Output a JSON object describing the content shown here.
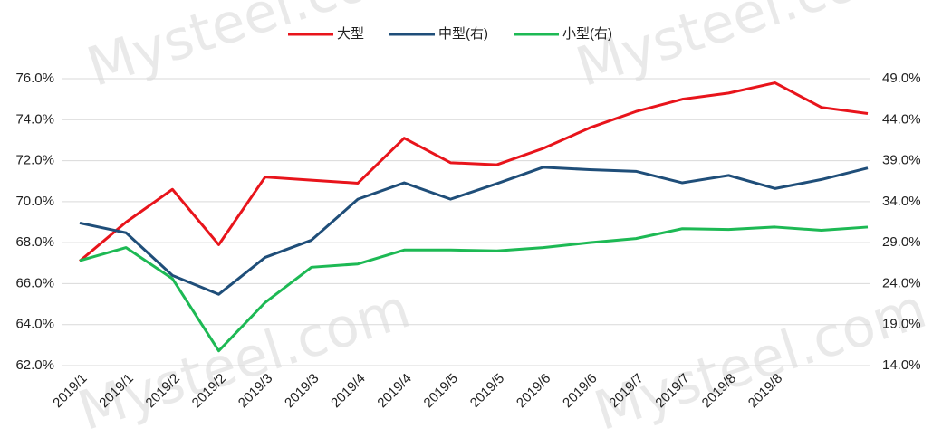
{
  "chart_data": {
    "type": "line",
    "watermark": "Mysteel.com",
    "categories": [
      "2019/1",
      "2019/1",
      "2019/2",
      "2019/2",
      "2019/3",
      "2019/3",
      "2019/4",
      "2019/4",
      "2019/5",
      "2019/5",
      "2019/6",
      "2019/6",
      "2019/7",
      "2019/7",
      "2019/8",
      "2019/8",
      null,
      null
    ],
    "series": [
      {
        "name": "大型",
        "color": "#e8141b",
        "values": [
          67.1,
          69.0,
          70.6,
          67.9,
          71.2,
          71.05,
          70.9,
          73.1,
          71.9,
          71.8,
          72.6,
          73.6,
          74.4,
          75.0,
          75.3,
          75.8,
          74.6,
          74.3
        ]
      },
      {
        "name": "中型(右)",
        "color": "#1f4e79",
        "axis": "y2",
        "values": [
          31.4,
          30.2,
          25.0,
          22.7,
          27.2,
          29.3,
          34.3,
          36.3,
          34.3,
          36.2,
          38.2,
          37.9,
          37.7,
          36.3,
          37.2,
          35.6,
          36.7,
          38.1
        ]
      },
      {
        "name": "小型(右)",
        "color": "#1db954",
        "axis": "y2",
        "values": [
          26.8,
          28.4,
          24.6,
          15.8,
          21.7,
          26.0,
          26.4,
          28.1,
          28.1,
          28.0,
          28.4,
          29.0,
          29.5,
          30.7,
          30.6,
          30.9,
          30.5,
          30.9
        ]
      }
    ],
    "ylim": [
      62,
      76
    ],
    "yticks": [
      {
        "value": 62,
        "label": "62.0%"
      },
      {
        "value": 64,
        "label": "64.0%"
      },
      {
        "value": 66,
        "label": "66.0%"
      },
      {
        "value": 68,
        "label": "68.0%"
      },
      {
        "value": 70,
        "label": "70.0%"
      },
      {
        "value": 72,
        "label": "72.0%"
      },
      {
        "value": 74,
        "label": "74.0%"
      },
      {
        "value": 76,
        "label": "76.0%"
      }
    ],
    "y2lim": [
      14,
      49
    ],
    "y2ticks": [
      {
        "value": 14,
        "label": "14.0%"
      },
      {
        "value": 19,
        "label": "19.0%"
      },
      {
        "value": 24,
        "label": "24.0%"
      },
      {
        "value": 29,
        "label": "29.0%"
      },
      {
        "value": 34,
        "label": "34.0%"
      },
      {
        "value": 39,
        "label": "39.0%"
      },
      {
        "value": 44,
        "label": "44.0%"
      },
      {
        "value": 49,
        "label": "49.0%"
      }
    ],
    "grid": true,
    "legend": "top"
  }
}
